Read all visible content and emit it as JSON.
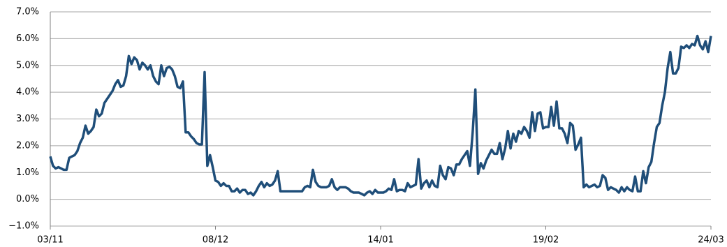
{
  "chart_data": {
    "type": "line",
    "categories": [
      "03/11",
      null,
      null,
      null,
      null,
      null,
      null,
      null,
      null,
      null,
      null,
      null,
      null,
      null,
      null,
      null,
      null,
      null,
      null,
      null,
      null,
      null,
      null,
      null,
      null,
      null,
      null,
      null,
      null,
      null,
      null,
      null,
      null,
      null,
      null,
      null,
      null,
      null,
      null,
      null,
      null,
      null,
      null,
      null,
      null,
      null,
      null,
      null,
      null,
      null,
      null,
      null,
      null,
      null,
      null,
      null,
      null,
      null,
      null,
      null,
      null,
      "08/12",
      null,
      null,
      null,
      null,
      null,
      null,
      null,
      null,
      null,
      null,
      null,
      null,
      null,
      null,
      null,
      null,
      null,
      null,
      null,
      null,
      null,
      null,
      null,
      null,
      null,
      null,
      null,
      null,
      null,
      null,
      null,
      null,
      null,
      null,
      null,
      null,
      null,
      null,
      null,
      null,
      null,
      null,
      null,
      null,
      null,
      null,
      null,
      null,
      null,
      null,
      null,
      null,
      null,
      null,
      null,
      null,
      null,
      null,
      null,
      null,
      "14/01",
      null,
      null,
      null,
      null,
      null,
      null,
      null,
      null,
      null,
      null,
      null,
      null,
      null,
      null,
      null,
      null,
      null,
      null,
      null,
      null,
      null,
      null,
      null,
      null,
      null,
      null,
      null,
      null,
      null,
      null,
      null,
      null,
      null,
      null,
      null,
      null,
      null,
      null,
      null,
      null,
      null,
      null,
      null,
      null,
      null,
      null,
      null,
      null,
      null,
      null,
      null,
      null,
      null,
      null,
      null,
      null,
      null,
      null,
      null,
      null,
      "19/02",
      null,
      null,
      null,
      null,
      null,
      null,
      null,
      null,
      null,
      null,
      null,
      null,
      null,
      null,
      null,
      null,
      null,
      null,
      null,
      null,
      null,
      null,
      null,
      null,
      null,
      null,
      null,
      null,
      null,
      null,
      null,
      null,
      null,
      null,
      null,
      null,
      null,
      null,
      null,
      null,
      null,
      null,
      null,
      null,
      null,
      null,
      null,
      null,
      null,
      null,
      null,
      null,
      null,
      null,
      null,
      null,
      null,
      null,
      null,
      null,
      "24/03"
    ],
    "series": [
      {
        "color": "#1f4e79",
        "values": [
          1.6,
          1.25,
          1.15,
          1.2,
          1.15,
          1.1,
          1.1,
          1.55,
          1.6,
          1.65,
          1.8,
          2.1,
          2.3,
          2.75,
          2.45,
          2.55,
          2.7,
          3.35,
          3.1,
          3.2,
          3.6,
          3.75,
          3.9,
          4.05,
          4.3,
          4.45,
          4.2,
          4.25,
          4.6,
          5.35,
          5.05,
          5.3,
          5.2,
          4.85,
          5.1,
          5,
          4.85,
          5,
          4.6,
          4.4,
          4.3,
          5,
          4.6,
          4.9,
          4.95,
          4.85,
          4.6,
          4.2,
          4.15,
          4.4,
          2.5,
          2.5,
          2.35,
          2.25,
          2.1,
          2.05,
          2.05,
          4.75,
          1.25,
          1.65,
          1.2,
          0.7,
          0.65,
          0.5,
          0.6,
          0.5,
          0.5,
          0.3,
          0.3,
          0.4,
          0.25,
          0.35,
          0.35,
          0.2,
          0.25,
          0.15,
          0.3,
          0.5,
          0.65,
          0.45,
          0.6,
          0.5,
          0.55,
          0.7,
          1.05,
          0.3,
          0.3,
          0.3,
          0.3,
          0.3,
          0.3,
          0.3,
          0.3,
          0.3,
          0.45,
          0.5,
          0.45,
          1.1,
          0.65,
          0.5,
          0.45,
          0.45,
          0.45,
          0.5,
          0.75,
          0.45,
          0.35,
          0.45,
          0.45,
          0.45,
          0.4,
          0.3,
          0.25,
          0.25,
          0.25,
          0.2,
          0.15,
          0.25,
          0.3,
          0.2,
          0.35,
          0.25,
          0.25,
          0.25,
          0.3,
          0.4,
          0.35,
          0.75,
          0.3,
          0.35,
          0.35,
          0.3,
          0.6,
          0.45,
          0.5,
          0.55,
          1.5,
          0.4,
          0.6,
          0.7,
          0.45,
          0.7,
          0.5,
          0.45,
          1.25,
          0.9,
          0.75,
          1.2,
          1.15,
          0.9,
          1.3,
          1.3,
          1.5,
          1.65,
          1.8,
          1.25,
          2.5,
          4.1,
          0.95,
          1.35,
          1.15,
          1.45,
          1.65,
          1.85,
          1.7,
          1.7,
          2.1,
          1.5,
          1.9,
          2.55,
          1.9,
          2.45,
          2.15,
          2.55,
          2.45,
          2.7,
          2.55,
          2.3,
          3.25,
          2.55,
          3.2,
          3.25,
          2.65,
          2.7,
          2.7,
          3.45,
          2.75,
          3.65,
          2.65,
          2.65,
          2.45,
          2.1,
          2.85,
          2.75,
          1.85,
          2.05,
          2.3,
          0.45,
          0.55,
          0.45,
          0.5,
          0.55,
          0.45,
          0.5,
          0.9,
          0.8,
          0.35,
          0.45,
          0.4,
          0.35,
          0.25,
          0.45,
          0.3,
          0.45,
          0.35,
          0.3,
          0.85,
          0.3,
          0.3,
          1.05,
          0.6,
          1.2,
          1.4,
          2.1,
          2.7,
          2.85,
          3.5,
          4,
          4.9,
          5.5,
          4.7,
          4.7,
          4.9,
          5.7,
          5.65,
          5.75,
          5.65,
          5.8,
          5.75,
          6.1,
          5.75,
          5.6,
          5.9,
          5.5,
          6.1
        ]
      }
    ],
    "ylim": [
      -1,
      7
    ],
    "yticks": [
      {
        "value": -1,
        "label": "−1.0%"
      },
      {
        "value": 0,
        "label": "0.0%"
      },
      {
        "value": 1,
        "label": "1.0%"
      },
      {
        "value": 2,
        "label": "2.0%"
      },
      {
        "value": 3,
        "label": "3.0%"
      },
      {
        "value": 4,
        "label": "4.0%"
      },
      {
        "value": 5,
        "label": "5.0%"
      },
      {
        "value": 6,
        "label": "6.0%"
      },
      {
        "value": 7,
        "label": "7.0%"
      }
    ],
    "grid": true
  }
}
